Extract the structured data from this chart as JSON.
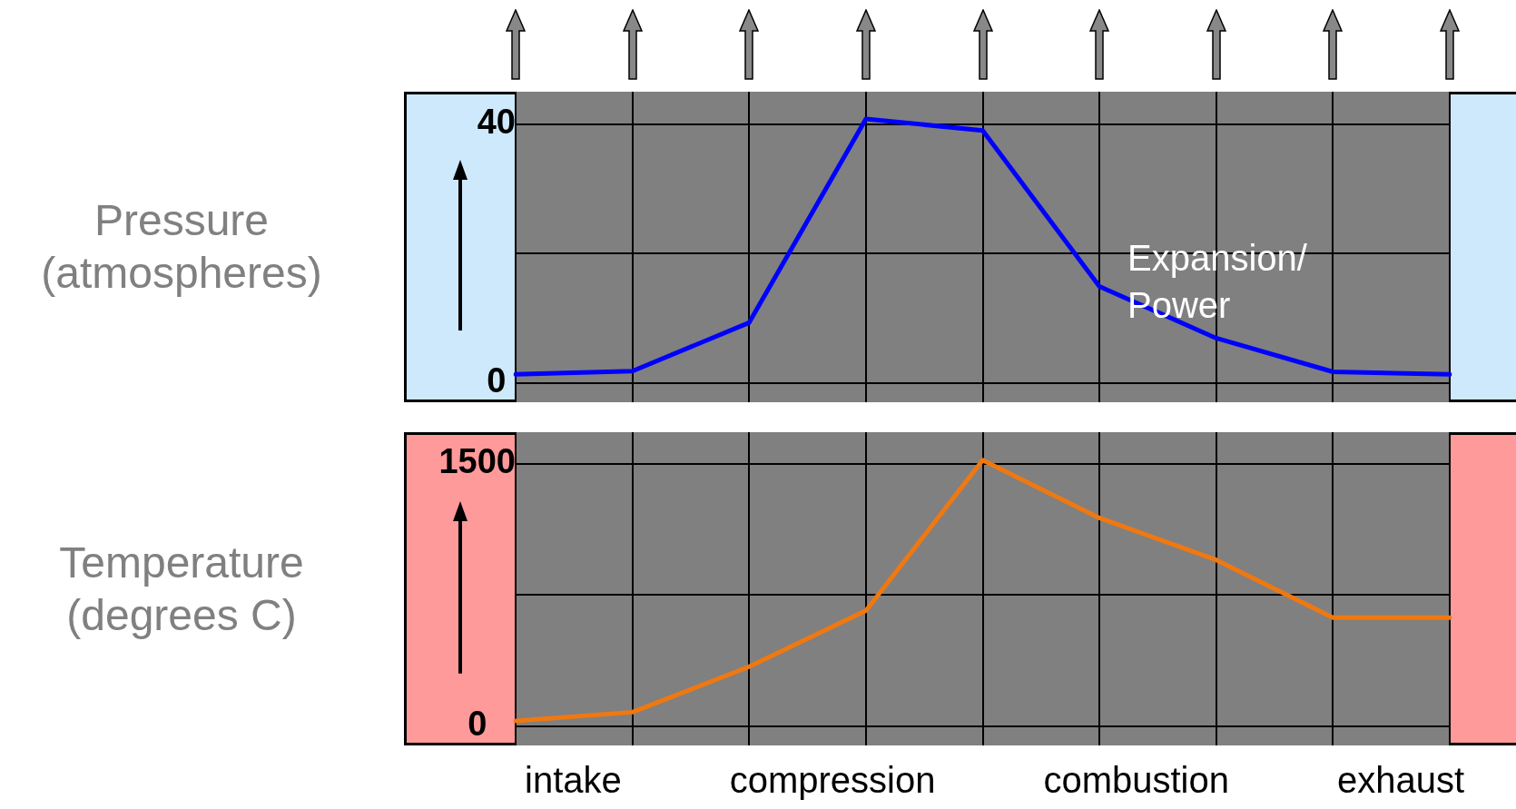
{
  "chart_data": [
    {
      "type": "line",
      "ylabel": "Pressure (atmospheres)",
      "categories": [
        null,
        null,
        null,
        null,
        null,
        null,
        null,
        null,
        null
      ],
      "series": [
        {
          "color": "#0000ff",
          "values": [
            1.3,
            1.8,
            9.3,
            40.8,
            39,
            14.9,
            6.9,
            1.7,
            1.3
          ]
        }
      ],
      "ylim": [
        -3,
        45
      ],
      "yticks": [
        0,
        {
          "value": 20,
          "label": null
        },
        40
      ],
      "grid": true,
      "tick_labels": "y",
      "annotations": [
        "Expansion/ Power"
      ]
    },
    {
      "type": "line",
      "ylabel": "Temperature (degrees C)",
      "categories": [
        null,
        null,
        null,
        null,
        null,
        null,
        null,
        null,
        null
      ],
      "series": [
        {
          "color": "#f07810",
          "values": [
            30,
            80,
            340,
            660,
            1520,
            1190,
            950,
            620,
            620
          ]
        }
      ],
      "ylim": [
        -110,
        1680
      ],
      "yticks": [
        0,
        {
          "value": 750,
          "label": null
        },
        1500
      ],
      "grid": true,
      "tick_labels": "y",
      "annotations": [
        "intake",
        "compression",
        "combustion",
        "exhaust"
      ]
    }
  ]
}
